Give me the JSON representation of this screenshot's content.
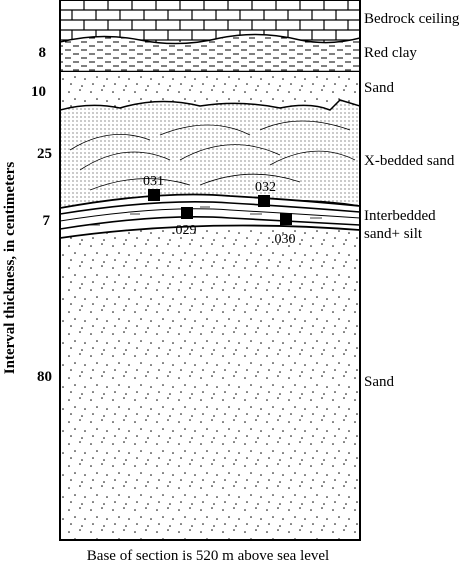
{
  "layers": [
    {
      "id": "bedrock",
      "label": "Bedrock ceiling",
      "thickness": ""
    },
    {
      "id": "red-clay",
      "label": "Red clay",
      "thickness": "8"
    },
    {
      "id": "sand-upper",
      "label": "Sand",
      "thickness": "10"
    },
    {
      "id": "x-bedded",
      "label": "X-bedded sand",
      "thickness": "25"
    },
    {
      "id": "interbedded",
      "label_line1": "Interbedded",
      "label_line2": "sand+ silt",
      "thickness": "7"
    },
    {
      "id": "sand-lower",
      "label": "Sand",
      "thickness": "80"
    }
  ],
  "samples": [
    "031",
    "032",
    ".029",
    ".030"
  ],
  "axis_label": "Interval thickness, in centimeters",
  "caption": "Base of section is 520 m above sea level"
}
